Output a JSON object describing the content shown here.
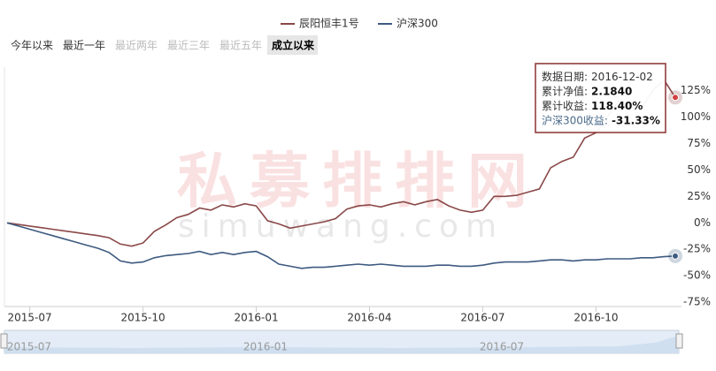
{
  "chart_data": {
    "type": "line",
    "categories": [
      null,
      null,
      "2015-07",
      null,
      null,
      null,
      null,
      null,
      null,
      null,
      null,
      null,
      "2015-10",
      null,
      null,
      null,
      null,
      null,
      null,
      null,
      null,
      null,
      "2016-01",
      null,
      null,
      null,
      null,
      null,
      null,
      null,
      null,
      null,
      "2016-04",
      null,
      null,
      null,
      null,
      null,
      null,
      null,
      null,
      null,
      "2016-07",
      null,
      null,
      null,
      null,
      null,
      null,
      null,
      null,
      null,
      "2016-10",
      null,
      null,
      null,
      null,
      null,
      null,
      null
    ],
    "series": [
      {
        "name": "辰阳恒丰1号",
        "color": "#8a4848",
        "values": [
          0,
          -1.5,
          -3,
          -4.5,
          -6,
          -7.5,
          -9,
          -10.5,
          -12,
          -14,
          -20,
          -22,
          -19,
          -8,
          -2,
          5,
          8,
          14,
          12,
          17,
          15,
          18,
          16,
          2,
          -1,
          -5,
          -3,
          -1,
          1,
          4,
          13,
          16,
          17,
          15,
          18,
          20,
          17,
          20,
          22,
          16,
          12,
          10,
          12,
          25,
          25,
          26,
          29,
          32,
          52,
          58,
          62,
          80,
          85,
          100,
          115,
          112,
          108,
          125,
          135,
          118.4
        ]
      },
      {
        "name": "沪深300",
        "color": "#3d5a80",
        "values": [
          0,
          -3,
          -6,
          -9,
          -12,
          -15,
          -18,
          -21,
          -24,
          -28,
          -36,
          -38,
          -37,
          -33,
          -31,
          -30,
          -29,
          -27,
          -30,
          -28,
          -30,
          -28,
          -27,
          -32,
          -39,
          -41,
          -43,
          -42,
          -42,
          -41,
          -40,
          -39,
          -40,
          -39,
          -40,
          -41,
          -41,
          -41,
          -40,
          -40,
          -41,
          -41,
          -40,
          -38,
          -37,
          -37,
          -37,
          -36,
          -35,
          -35,
          -36,
          -35,
          -35,
          -34,
          -34,
          -34,
          -33,
          -33,
          -32,
          -31.33
        ]
      }
    ],
    "ylim": [
      -79,
      147
    ],
    "yticks": [
      {
        "value": 125,
        "label": "125%"
      },
      {
        "value": 100,
        "label": "100%"
      },
      {
        "value": 75,
        "label": "75%"
      },
      {
        "value": 50,
        "label": "50%"
      },
      {
        "value": 25,
        "label": "25%"
      },
      {
        "value": 0,
        "label": "0%"
      },
      {
        "value": -25,
        "label": "-25%"
      },
      {
        "value": -50,
        "label": "-50%"
      },
      {
        "value": -75,
        "label": "-75%"
      }
    ],
    "grid": false
  },
  "range_buttons": [
    {
      "label": "今年以来",
      "state": "normal"
    },
    {
      "label": "最近一年",
      "state": "normal"
    },
    {
      "label": "最近两年",
      "state": "disabled"
    },
    {
      "label": "最近三年",
      "state": "disabled"
    },
    {
      "label": "最近五年",
      "state": "disabled"
    },
    {
      "label": "成立以来",
      "state": "selected"
    }
  ],
  "tooltip": {
    "rows": [
      {
        "label": "数据日期:",
        "value": "2016-12-02"
      },
      {
        "label": "累计净值:",
        "value": "2.1840"
      },
      {
        "label": "累计收益:",
        "value": "118.40%"
      },
      {
        "label": "沪深300收益:",
        "value": "-31.33%"
      }
    ]
  },
  "watermark": {
    "title": "私募排排网",
    "url": "simuwang.com"
  },
  "navigator": {
    "labels": [
      "2015-07",
      "2016-01",
      "2016-07"
    ]
  }
}
